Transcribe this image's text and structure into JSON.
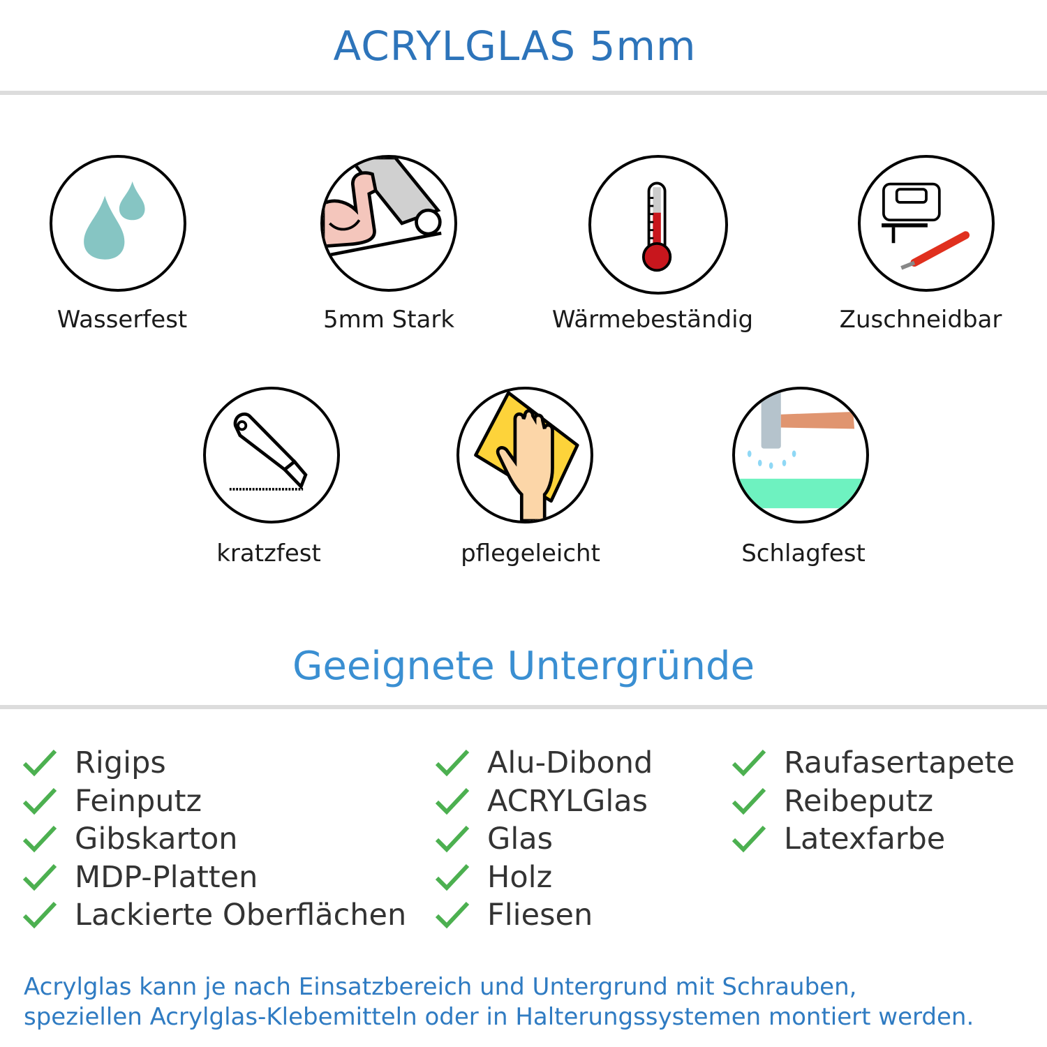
{
  "header": {
    "title": "ACRYLGLAS 5mm"
  },
  "features": [
    {
      "label": "Wasserfest",
      "icon": "water-drops-icon"
    },
    {
      "label": "5mm Stark",
      "icon": "strong-arm-icon"
    },
    {
      "label": "Wärmebeständig",
      "icon": "thermometer-icon"
    },
    {
      "label": "Zuschneidbar",
      "icon": "jigsaw-cutter-icon"
    },
    {
      "label": "kratzfest",
      "icon": "cutter-knife-icon"
    },
    {
      "label": "pflegeleicht",
      "icon": "hand-cleaning-cloth-icon"
    },
    {
      "label": "Schlagfest",
      "icon": "hammer-impact-icon"
    }
  ],
  "surfaces": {
    "title": "Geeignete Untergründe",
    "check_color": "#4cb050",
    "columns": [
      [
        "Rigips",
        "Feinputz",
        "Gibskarton",
        "MDP-Platten",
        "Lackierte Oberflächen"
      ],
      [
        "Alu-Dibond",
        "ACRYLGlas",
        "Glas",
        "Holz",
        "Fliesen"
      ],
      [
        "Raufasertapete",
        "Reibeputz",
        "Latexfarbe"
      ]
    ]
  },
  "footer": {
    "line1": "Acrylglas kann je nach Einsatzbereich und Untergrund mit Schrauben,",
    "line2": "speziellen Acrylglas-Klebemitteln oder in Halterungssystemen montiert werden."
  },
  "colors": {
    "title": "#2d74ba",
    "subtitle": "#3a8fd2",
    "footer": "#2f7bc2",
    "divider": "#dcdcdc"
  }
}
